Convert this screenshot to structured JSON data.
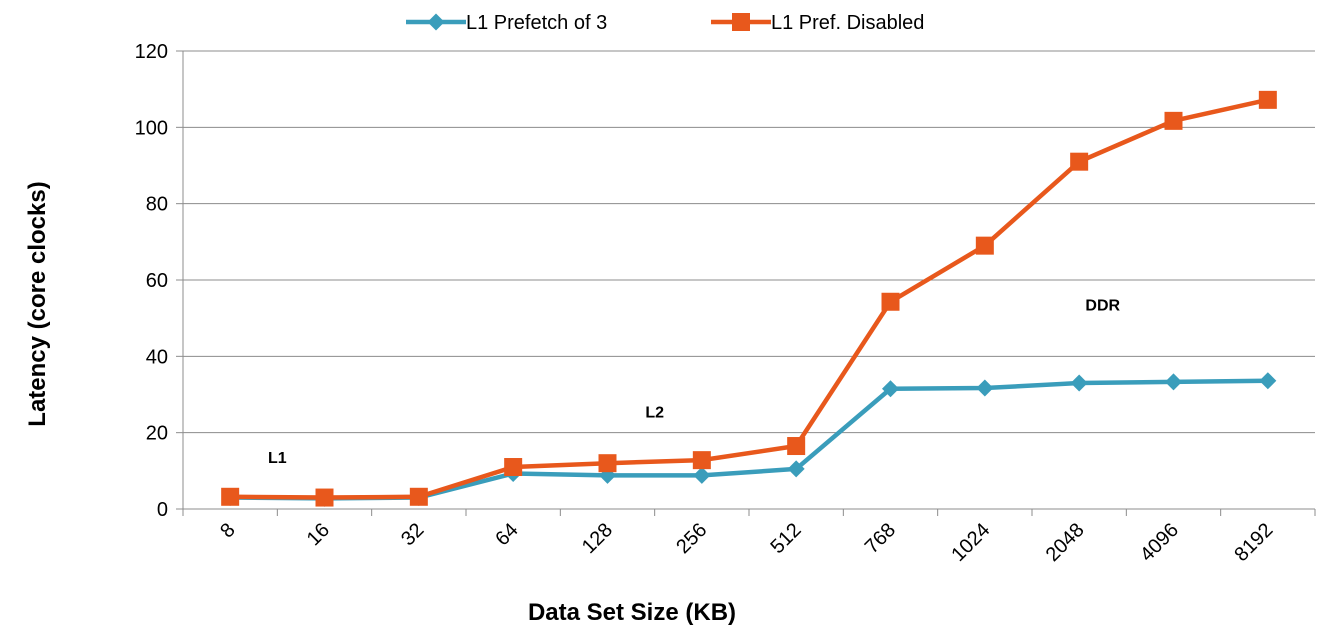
{
  "chart_data": {
    "type": "line",
    "title": "",
    "xlabel": "Data Set Size (KB)",
    "ylabel": "Latency (core clocks)",
    "categories": [
      "8",
      "16",
      "32",
      "64",
      "128",
      "256",
      "512",
      "768",
      "1024",
      "2048",
      "4096",
      "8192"
    ],
    "ylim": [
      0,
      120
    ],
    "yticks": [
      0,
      20,
      40,
      60,
      80,
      100,
      120
    ],
    "grid": true,
    "legend_position": "top",
    "series": [
      {
        "name": "L1 Prefetch of 3",
        "color": "#3A9DBB",
        "marker": "diamond",
        "values": [
          3.0,
          2.8,
          3.0,
          9.3,
          8.8,
          8.8,
          10.5,
          31.5,
          31.7,
          33.0,
          33.3,
          33.6
        ]
      },
      {
        "name": "L1 Pref. Disabled",
        "color": "#E8581C",
        "marker": "square",
        "values": [
          3.2,
          3.0,
          3.2,
          11.0,
          12.0,
          12.8,
          16.5,
          54.3,
          69.0,
          91.0,
          101.7,
          107.2
        ]
      }
    ],
    "annotations": [
      {
        "text": "L1",
        "x": 0.5,
        "y": 12
      },
      {
        "text": "L2",
        "x": 4.5,
        "y": 24
      },
      {
        "text": "DDR",
        "x": 9.25,
        "y": 52
      }
    ]
  }
}
